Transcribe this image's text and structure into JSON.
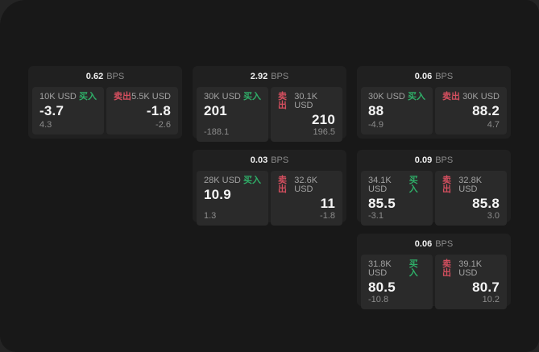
{
  "labels": {
    "bps": "BPS",
    "buy": "买入",
    "sell": "卖出"
  },
  "colors": {
    "outer_background": "#242424",
    "window_background": "#181818",
    "card_background": "#202020",
    "panel_background": "#2a2a2a",
    "buy_green": "#2fae68",
    "sell_red": "#d44f5f",
    "value_white": "#f5f5f5",
    "muted_gray": "#8c8c8c",
    "amount_gray": "#a2a2a2"
  },
  "cards": [
    {
      "bps": "0.62",
      "buy": {
        "amount": "10K USD",
        "price": "-3.7",
        "delta": "4.3"
      },
      "sell": {
        "amount": "5.5K USD",
        "price": "-1.8",
        "delta": "-2.6"
      }
    },
    {
      "bps": "2.92",
      "buy": {
        "amount": "30K USD",
        "price": "201",
        "delta": "-188.1"
      },
      "sell": {
        "amount": "30.1K USD",
        "price": "210",
        "delta": "196.5"
      }
    },
    {
      "bps": "0.06",
      "buy": {
        "amount": "30K USD",
        "price": "88",
        "delta": "-4.9"
      },
      "sell": {
        "amount": "30K USD",
        "price": "88.2",
        "delta": "4.7"
      }
    },
    {
      "bps": "0.03",
      "buy": {
        "amount": "28K USD",
        "price": "10.9",
        "delta": "1.3"
      },
      "sell": {
        "amount": "32.6K USD",
        "price": "11",
        "delta": "-1.8"
      }
    },
    {
      "bps": "0.09",
      "buy": {
        "amount": "34.1K USD",
        "price": "85.5",
        "delta": "-3.1"
      },
      "sell": {
        "amount": "32.8K USD",
        "price": "85.8",
        "delta": "3.0"
      }
    },
    {
      "bps": "0.06",
      "buy": {
        "amount": "31.8K USD",
        "price": "80.5",
        "delta": "-10.8"
      },
      "sell": {
        "amount": "39.1K USD",
        "price": "80.7",
        "delta": "10.2"
      }
    }
  ]
}
